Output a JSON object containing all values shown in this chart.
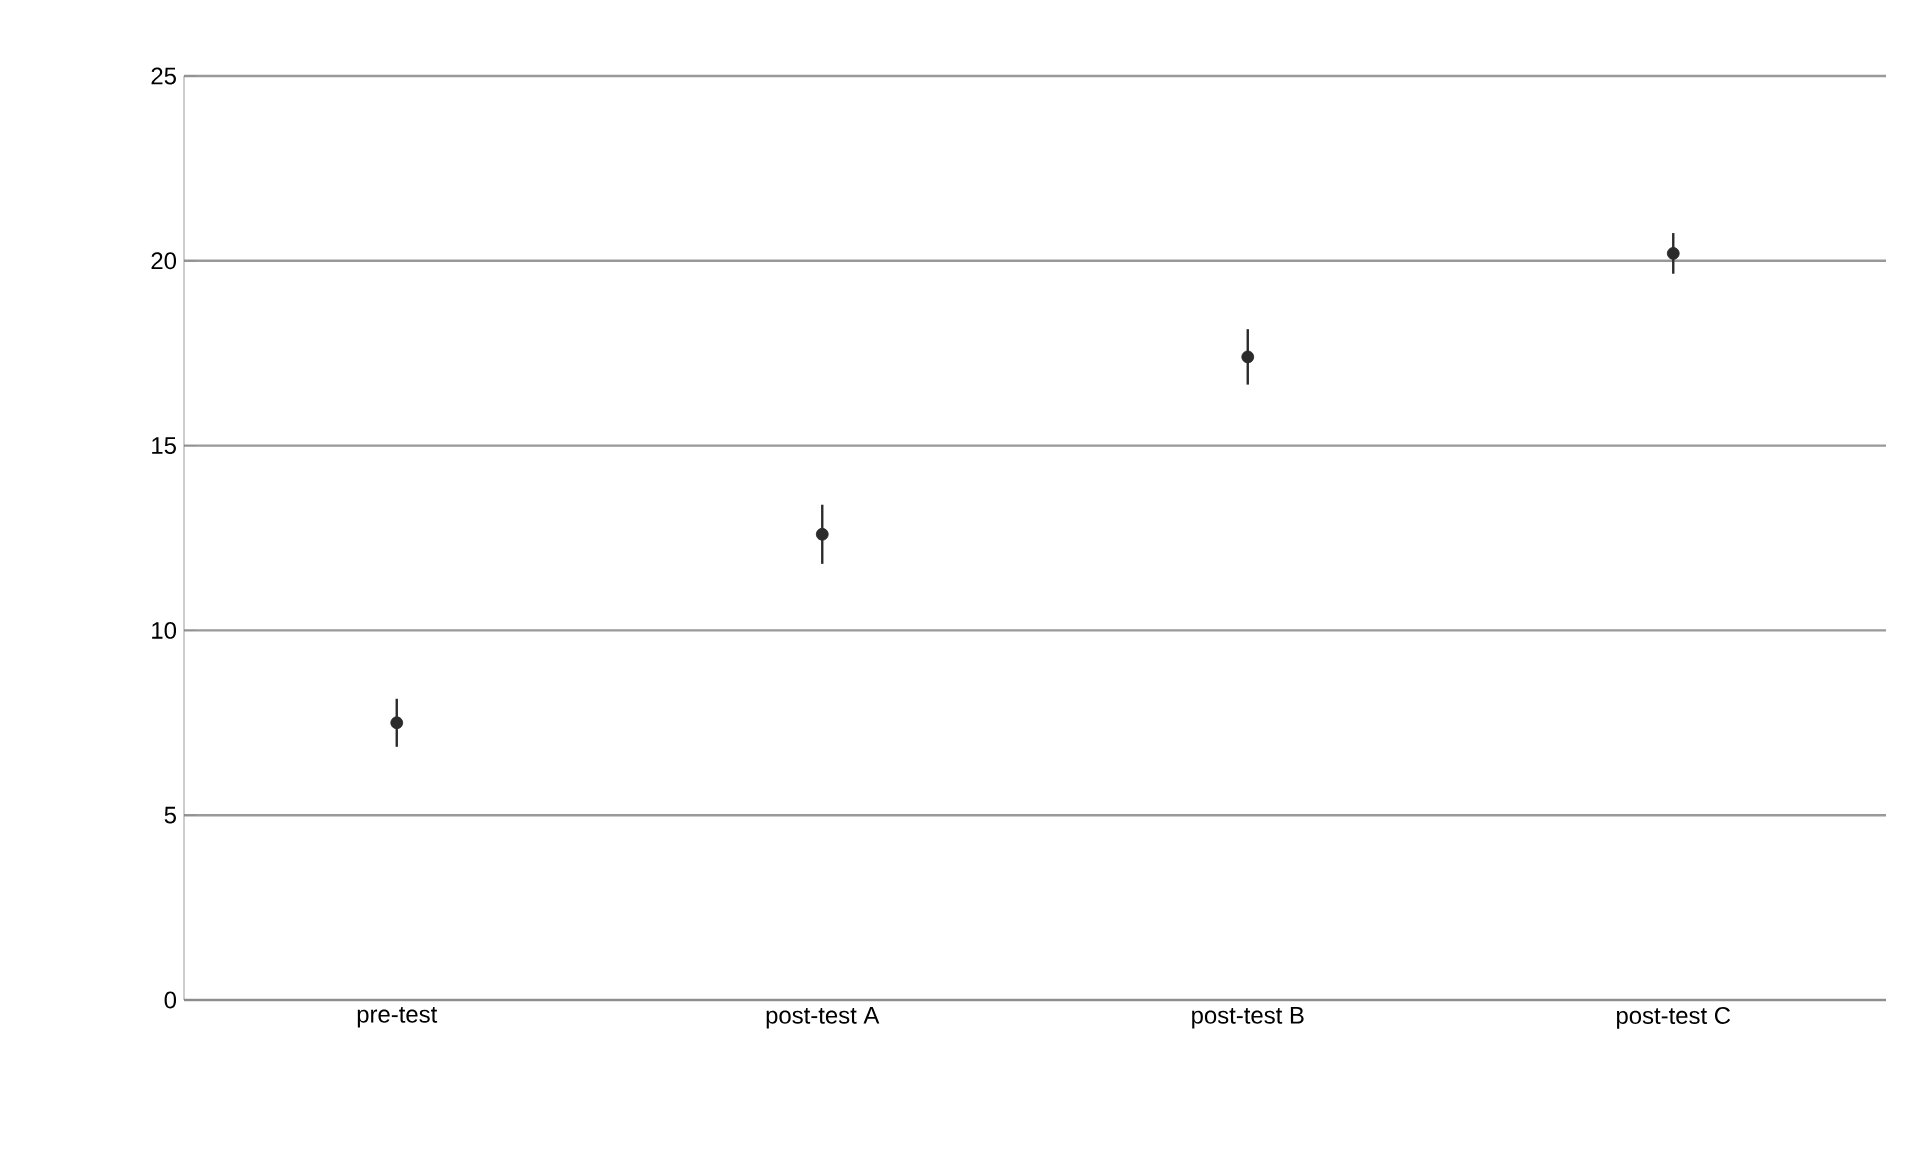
{
  "chart_data": {
    "type": "scatter",
    "categories": [
      "pre-test",
      "post-test A",
      "post-test B",
      "post-test C"
    ],
    "series": [
      {
        "color": "#2b2b2b",
        "values": [
          7.5,
          12.6,
          17.4,
          20.2
        ],
        "errors": [
          0.65,
          0.8,
          0.75,
          0.55
        ]
      }
    ],
    "ylim": [
      0,
      25
    ],
    "yticks": [
      0,
      5,
      10,
      15,
      20,
      25
    ],
    "grid": "y"
  }
}
